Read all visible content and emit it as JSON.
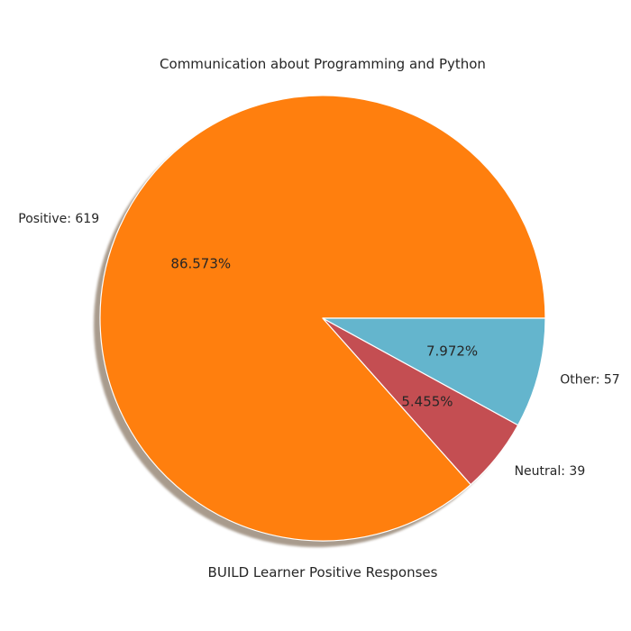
{
  "chart_data": {
    "type": "pie",
    "title": "Communication about Programming and Python",
    "xlabel": "BUILD Learner Positive Responses",
    "slices": [
      {
        "label": "Positive: 619",
        "value": 619,
        "percent_label": "86.573%",
        "color": "#ff7f0e"
      },
      {
        "label": "Neutral: 39",
        "value": 39,
        "percent_label": "5.455%",
        "color": "#c44e52"
      },
      {
        "label": "Other: 57",
        "value": 57,
        "percent_label": "7.972%",
        "color": "#64b5cd"
      }
    ],
    "shadow": true,
    "edge_color": "#ffffff"
  }
}
